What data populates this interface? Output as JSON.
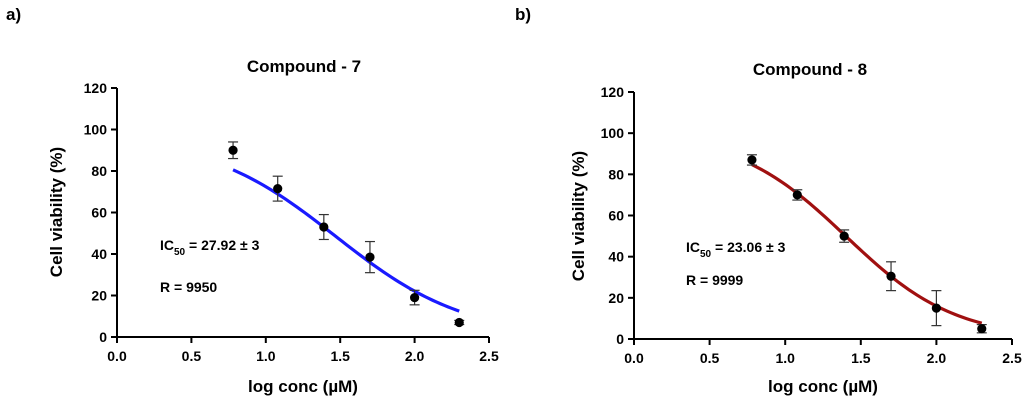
{
  "chart_data": [
    {
      "type": "scatter",
      "panel_label": "a)",
      "title": "Compound - 7",
      "xlabel": "log conc (µM)",
      "ylabel": "Cell viability (%)",
      "xlim": [
        0.0,
        2.5
      ],
      "ylim": [
        0,
        120
      ],
      "xticks": [
        0.0,
        0.5,
        1.0,
        1.5,
        2.0,
        2.5
      ],
      "xtick_labels": [
        "0.0",
        "0.5",
        "1.0",
        "1.5",
        "2.0",
        "2.5"
      ],
      "yticks": [
        0,
        20,
        40,
        60,
        80,
        100,
        120
      ],
      "ytick_labels": [
        "0",
        "20",
        "40",
        "60",
        "80",
        "100",
        "120"
      ],
      "curve_color": "#1a1aff",
      "ic50_prefix": "IC",
      "ic50_subscript": "50",
      "ic50_value": " = 27.92 ± 3",
      "r_text": "R = 9950",
      "fit": {
        "top": 97,
        "bottom": 0,
        "log_ic50": 1.47,
        "hill": 1.0,
        "x_range": [
          0.78,
          2.3
        ]
      },
      "points": [
        {
          "x": 0.78,
          "y": 90,
          "err": 4
        },
        {
          "x": 1.08,
          "y": 71.5,
          "err": 6
        },
        {
          "x": 1.39,
          "y": 53,
          "err": 6
        },
        {
          "x": 1.7,
          "y": 38.5,
          "err": 7.5
        },
        {
          "x": 2.0,
          "y": 19,
          "err": 3.5
        },
        {
          "x": 2.3,
          "y": 7,
          "err": 1
        }
      ]
    },
    {
      "type": "scatter",
      "panel_label": "b)",
      "title": "Compound - 8",
      "xlabel": "log conc (µM)",
      "ylabel": "Cell viability (%)",
      "xlim": [
        0.0,
        2.5
      ],
      "ylim": [
        0,
        120
      ],
      "xticks": [
        0.0,
        0.5,
        1.0,
        1.5,
        2.0,
        2.5
      ],
      "xtick_labels": [
        "0.0",
        "0.5",
        "1.0",
        "1.5",
        "2.0",
        "2.5"
      ],
      "yticks": [
        0,
        20,
        40,
        60,
        80,
        100,
        120
      ],
      "ytick_labels": [
        "0",
        "20",
        "40",
        "60",
        "80",
        "100",
        "120"
      ],
      "curve_color": "#a01010",
      "ic50_prefix": "IC",
      "ic50_subscript": "50",
      "ic50_value": " = 23.06 ± 3",
      "r_text": "R = 9999",
      "fit": {
        "top": 100,
        "bottom": 0,
        "log_ic50": 1.4,
        "hill": 1.2,
        "x_range": [
          0.78,
          2.3
        ]
      },
      "points": [
        {
          "x": 0.78,
          "y": 87,
          "err": 2.5
        },
        {
          "x": 1.08,
          "y": 70,
          "err": 2.5
        },
        {
          "x": 1.39,
          "y": 50,
          "err": 3
        },
        {
          "x": 1.7,
          "y": 30.5,
          "err": 7
        },
        {
          "x": 2.0,
          "y": 15,
          "err": 8.5
        },
        {
          "x": 2.3,
          "y": 5,
          "err": 2
        }
      ]
    }
  ]
}
